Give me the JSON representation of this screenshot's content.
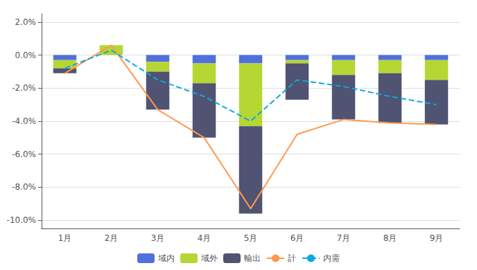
{
  "chart_data": {
    "type": "bar",
    "categories": [
      "1月",
      "2月",
      "3月",
      "4月",
      "5月",
      "6月",
      "7月",
      "8月",
      "9月"
    ],
    "series": [
      {
        "name": "域内",
        "type": "bar",
        "values": [
          -0.3,
          0.0,
          -0.4,
          -0.5,
          -0.5,
          -0.3,
          -0.3,
          -0.3,
          -0.3
        ]
      },
      {
        "name": "域外",
        "type": "bar",
        "values": [
          -0.5,
          0.6,
          -0.6,
          -1.2,
          -3.8,
          -0.2,
          -0.9,
          -0.8,
          -1.2
        ]
      },
      {
        "name": "輸出",
        "type": "bar",
        "values": [
          -0.3,
          0.0,
          -2.3,
          -3.3,
          -5.3,
          -2.2,
          -2.7,
          -3.0,
          -2.7
        ]
      },
      {
        "name": "計",
        "type": "line",
        "line_style": "solid",
        "values": [
          -1.1,
          0.6,
          -3.3,
          -5.0,
          -9.3,
          -4.8,
          -3.9,
          -4.1,
          -4.2
        ]
      },
      {
        "name": "内需",
        "type": "line",
        "line_style": "dashed",
        "values": [
          -0.8,
          0.3,
          -1.5,
          -2.5,
          -4.0,
          -1.5,
          -1.9,
          -2.5,
          -3.0
        ]
      }
    ],
    "stacked": true,
    "ylim": [
      -10.5,
      2.5
    ],
    "yticks": [
      {
        "value": 2.0,
        "label": "2.0%"
      },
      {
        "value": 0.0,
        "label": "0.0%"
      },
      {
        "value": -2.0,
        "label": "-2.0%"
      },
      {
        "value": -4.0,
        "label": "-4.0%"
      },
      {
        "value": -6.0,
        "label": "-6.0%"
      },
      {
        "value": -8.0,
        "label": "-8.0%"
      },
      {
        "value": -10.0,
        "label": "-10.0%"
      }
    ],
    "grid": true,
    "legend": "bottom"
  }
}
